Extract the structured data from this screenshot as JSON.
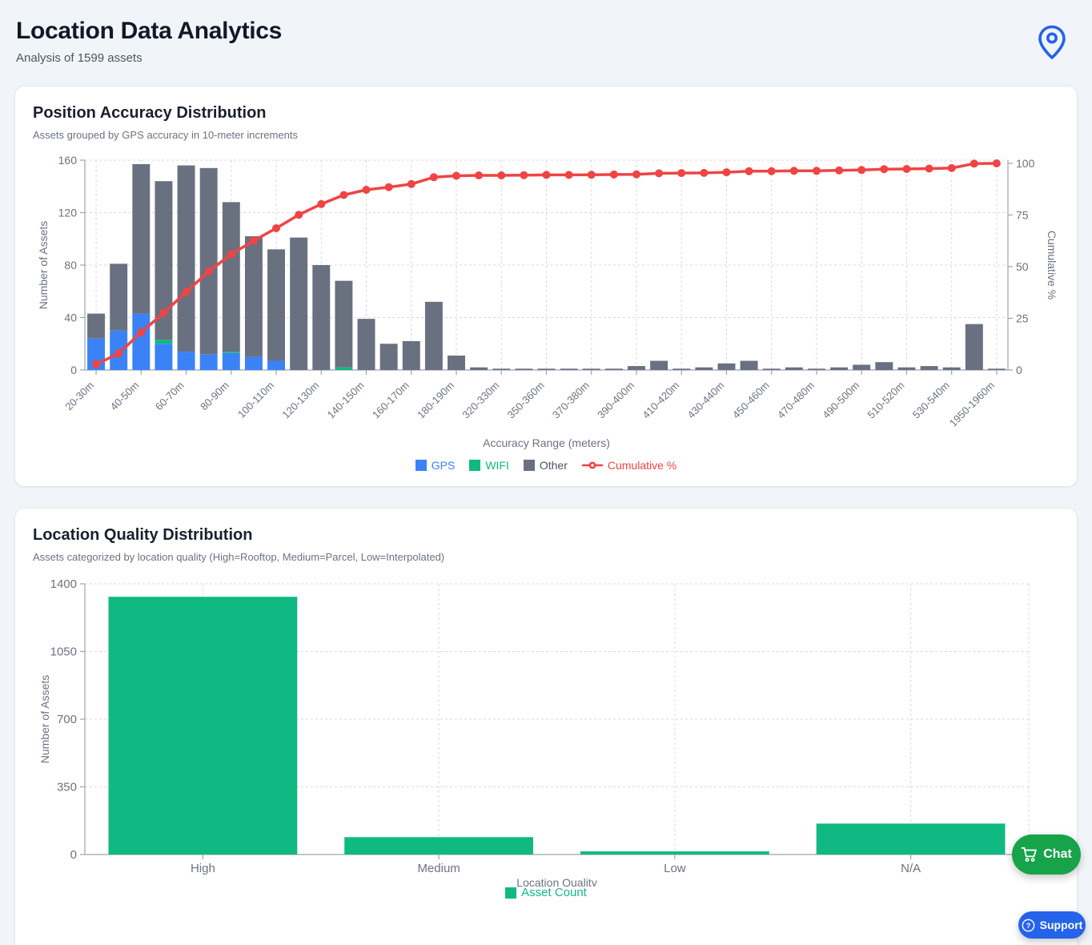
{
  "page": {
    "title": "Location Data Analytics",
    "subtitle": "Analysis of 1599 assets",
    "pin_icon_color": "#2563eb"
  },
  "chat_button": {
    "label": "Chat",
    "bg": "#16a34a",
    "icon": "cart-icon"
  },
  "support_button": {
    "label": "Support",
    "bg": "#2563eb",
    "icon": "help-circle-icon"
  },
  "accuracy_card": {
    "title": "Position Accuracy Distribution",
    "subtitle": "Assets grouped by GPS accuracy in 10-meter increments"
  },
  "quality_card": {
    "title": "Location Quality Distribution",
    "subtitle": "Assets categorized by location quality (High=Rooftop, Medium=Parcel, Low=Interpolated)"
  },
  "chart_data": [
    {
      "type": "bar",
      "subtype": "pareto-stacked",
      "title": "Position Accuracy Distribution",
      "xlabel": "Accuracy Range (meters)",
      "ylabel_left": "Number of Assets",
      "ylabel_right": "Cumulative %",
      "ylim_left": [
        0,
        160
      ],
      "ylim_right": [
        0,
        100
      ],
      "yticks_left": [
        0,
        40,
        80,
        120,
        160
      ],
      "yticks_right": [
        0,
        25,
        50,
        75,
        100
      ],
      "grid": true,
      "legend_position": "bottom",
      "categories": [
        "20-30m",
        "",
        "40-50m",
        "",
        "60-70m",
        "",
        "80-90m",
        "",
        "100-110m",
        "",
        "120-130m",
        "",
        "140-150m",
        "",
        "160-170m",
        "",
        "180-190m",
        "",
        "320-330m",
        "",
        "350-360m",
        "",
        "370-380m",
        "",
        "390-400m",
        "",
        "410-420m",
        "",
        "430-440m",
        "",
        "450-460m",
        "",
        "470-480m",
        "",
        "490-500m",
        "",
        "510-520m",
        "",
        "530-540m",
        "",
        "1950-1960m"
      ],
      "series": [
        {
          "name": "GPS",
          "kind": "bar",
          "color": "#3b82f6",
          "values": [
            24,
            30,
            43,
            20,
            14,
            12,
            13,
            10,
            7,
            0,
            0,
            0,
            0,
            0,
            0,
            0,
            0,
            0,
            0,
            0,
            0,
            0,
            0,
            0,
            0,
            0,
            0,
            0,
            0,
            0,
            0,
            0,
            0,
            0,
            0,
            0,
            0,
            0,
            0,
            0,
            0
          ]
        },
        {
          "name": "WIFI",
          "kind": "bar",
          "color": "#10b981",
          "values": [
            0,
            0,
            0,
            3,
            0,
            0,
            1,
            0,
            0,
            0,
            0,
            2,
            0,
            0,
            0,
            0,
            0,
            0,
            0,
            0,
            0,
            0,
            0,
            0,
            0,
            0,
            0,
            0,
            0,
            0,
            0,
            0,
            0,
            0,
            0,
            0,
            0,
            0,
            0,
            0,
            0
          ]
        },
        {
          "name": "Other",
          "kind": "bar",
          "color": "#697080",
          "values": [
            19,
            51,
            114,
            121,
            142,
            142,
            114,
            92,
            85,
            101,
            80,
            66,
            39,
            20,
            22,
            52,
            11,
            2,
            1,
            1,
            1,
            1,
            1,
            1,
            3,
            7,
            1,
            2,
            5,
            7,
            1,
            2,
            1,
            2,
            4,
            6,
            2,
            3,
            2,
            35,
            1
          ]
        },
        {
          "name": "Cumulative %",
          "kind": "line",
          "axis": "right",
          "color": "#ef4444",
          "values": [
            2.8,
            8,
            18.2,
            27.6,
            37.7,
            47.7,
            56,
            62.6,
            68.6,
            75.1,
            80.3,
            84.7,
            87.2,
            88.5,
            90,
            93.3,
            94,
            94.2,
            94.2,
            94.3,
            94.4,
            94.4,
            94.5,
            94.6,
            94.7,
            95.2,
            95.3,
            95.4,
            95.7,
            96.2,
            96.2,
            96.4,
            96.4,
            96.6,
            96.8,
            97.2,
            97.3,
            97.5,
            97.7,
            99.9,
            100
          ]
        }
      ]
    },
    {
      "type": "bar",
      "title": "Location Quality Distribution",
      "xlabel": "Location Quality",
      "ylabel": "Number of Assets",
      "ylim": [
        0,
        1400
      ],
      "yticks": [
        0,
        350,
        700,
        1050,
        1400
      ],
      "grid": true,
      "legend_position": "bottom",
      "categories": [
        "High",
        "Medium",
        "Low",
        "N/A"
      ],
      "series": [
        {
          "name": "Asset Count",
          "kind": "bar",
          "color": "#10b981",
          "values": [
            1333,
            90,
            16,
            160
          ]
        }
      ]
    }
  ],
  "chart_style": {
    "axis_color": "#9ca3af",
    "grid_color": "#d6dae0",
    "tick_text_color": "#6b7280",
    "other_text_color": "#4b5563"
  }
}
